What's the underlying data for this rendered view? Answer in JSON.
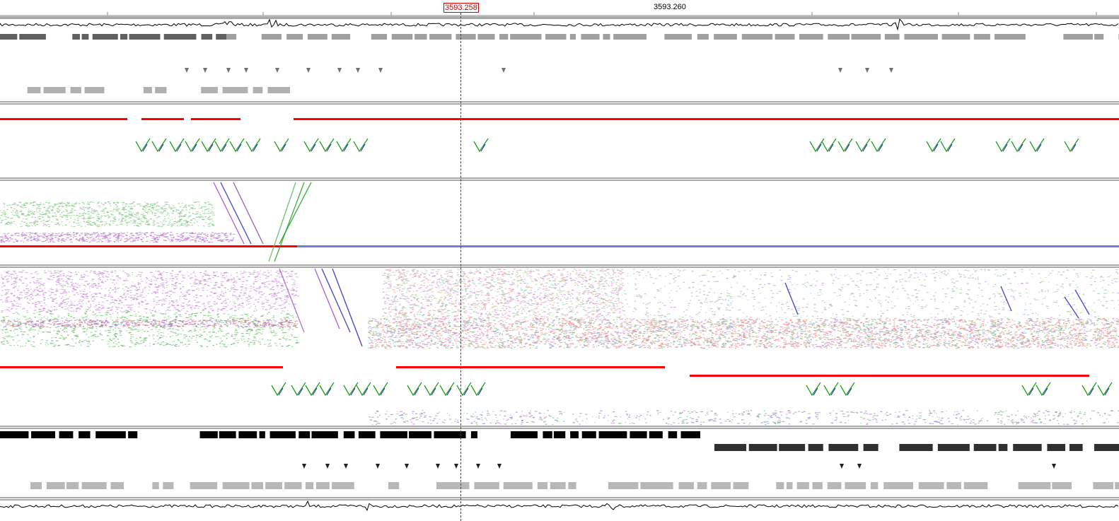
{
  "ruler": {
    "cursor_label": "3593.258",
    "tick_label": "3593.260"
  },
  "colors": {
    "forward": "#ff0000",
    "reverse": "#2020c0",
    "green": "#20a020",
    "purple": "#a040c0",
    "cursor": "#e00000",
    "gray": "#a0a0a0",
    "dark": "#000000"
  },
  "tracks": [
    {
      "name": "top-graph-track"
    },
    {
      "name": "top-feature-track"
    },
    {
      "name": "frame-plot-forward"
    },
    {
      "name": "reads-forward"
    },
    {
      "name": "reads-mixed"
    },
    {
      "name": "frame-plot-reverse"
    },
    {
      "name": "bottom-feature-track"
    },
    {
      "name": "bottom-graph-track"
    }
  ]
}
